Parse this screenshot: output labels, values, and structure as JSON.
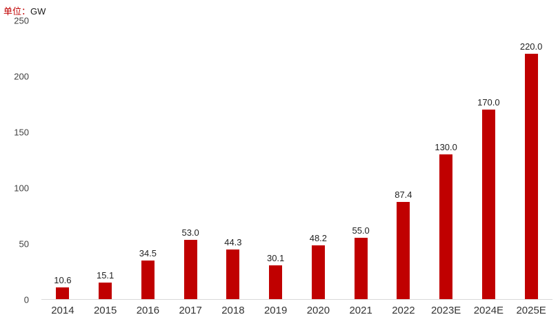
{
  "header": {
    "unit_prefix": "单位：",
    "unit_value": "GW"
  },
  "chart_data": {
    "type": "bar",
    "categories": [
      "2014",
      "2015",
      "2016",
      "2017",
      "2018",
      "2019",
      "2020",
      "2021",
      "2022",
      "2023E",
      "2024E",
      "2025E"
    ],
    "values": [
      10.6,
      15.1,
      34.5,
      53.0,
      44.3,
      30.1,
      48.2,
      55.0,
      87.4,
      130.0,
      170.0,
      220.0
    ],
    "value_labels": [
      "10.6",
      "15.1",
      "34.5",
      "53.0",
      "44.3",
      "30.1",
      "48.2",
      "55.0",
      "87.4",
      "130.0",
      "170.0",
      "220.0"
    ],
    "title": "",
    "xlabel": "",
    "ylabel": "",
    "ylim": [
      0,
      250
    ],
    "y_ticks": [
      0,
      50,
      100,
      150,
      200,
      250
    ],
    "bar_color": "#c00000",
    "axis_line_color": "#d9d9d9",
    "grid": false,
    "legend_position": "none"
  }
}
